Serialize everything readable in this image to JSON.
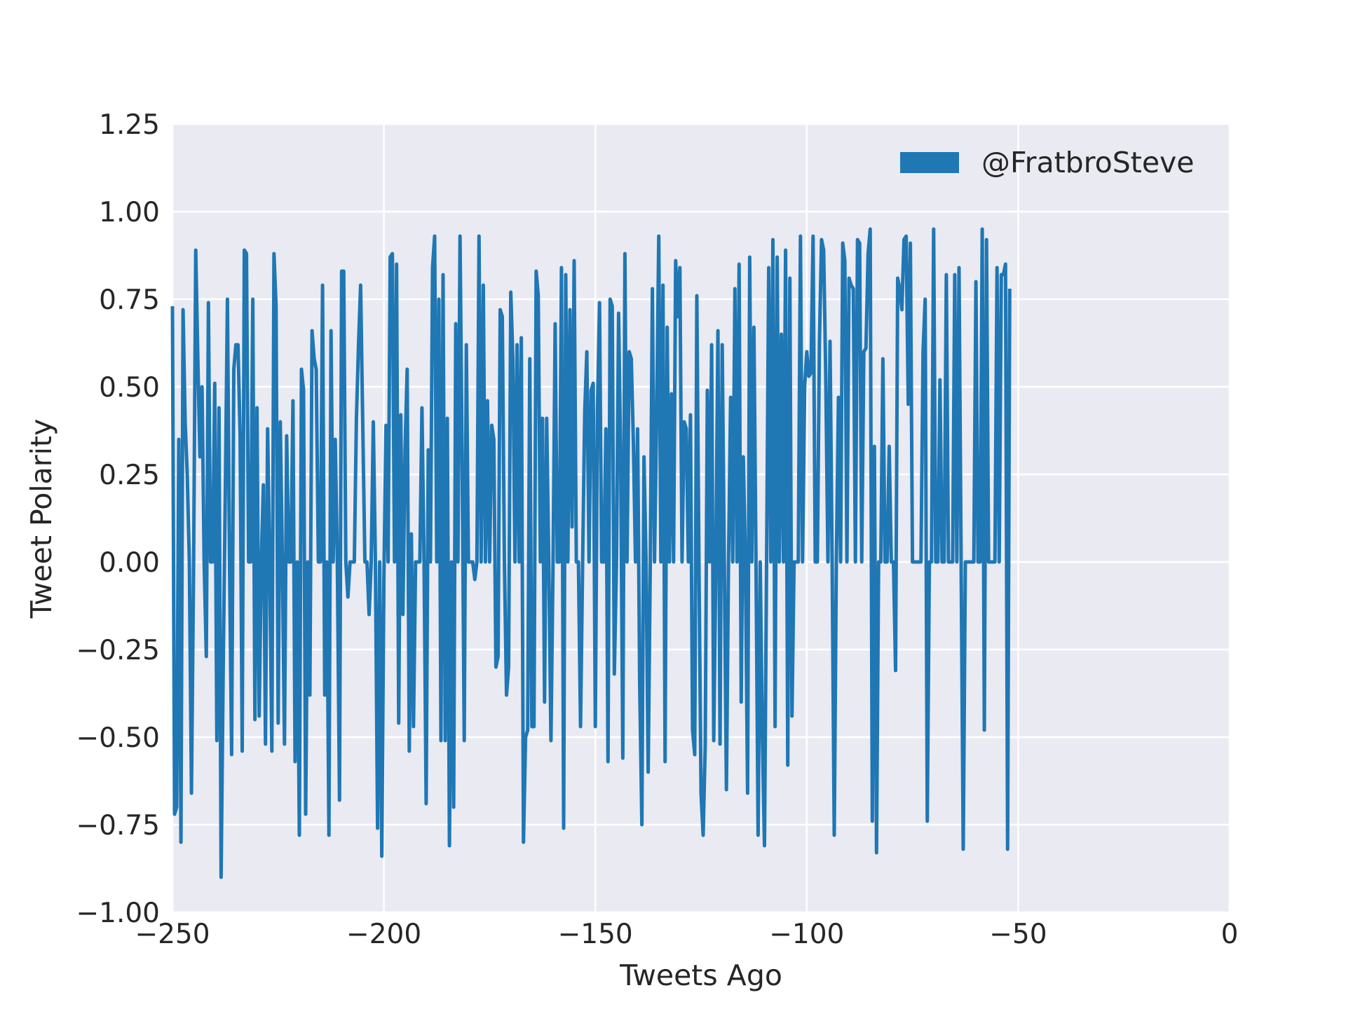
{
  "chart_data": {
    "type": "line",
    "title": "",
    "xlabel": "Tweets Ago",
    "ylabel": "Tweet Polarity",
    "xlim": [
      -250,
      0
    ],
    "ylim": [
      -1.0,
      1.25
    ],
    "x_ticks": [
      -250,
      -200,
      -150,
      -100,
      -50,
      0
    ],
    "x_tick_labels": [
      "−250",
      "−200",
      "−150",
      "−100",
      "−50",
      "0"
    ],
    "y_ticks": [
      -1.0,
      -0.75,
      -0.5,
      -0.25,
      0.0,
      0.25,
      0.5,
      0.75,
      1.0,
      1.25
    ],
    "y_tick_labels": [
      "−1.00",
      "−0.75",
      "−0.50",
      "−0.25",
      "0.00",
      "0.25",
      "0.50",
      "0.75",
      "1.00",
      "1.25"
    ],
    "grid": true,
    "legend_position": "top-right",
    "background_color": "#eaeaf2",
    "grid_color": "#ffffff",
    "series": [
      {
        "name": "@FratbroSteve",
        "color": "#1f77b4",
        "x_start": -250,
        "x_step": 0.5,
        "values": [
          0.73,
          -0.72,
          -0.7,
          0.35,
          -0.8,
          0.72,
          0.4,
          0.25,
          0.0,
          -0.66,
          0.0,
          0.89,
          0.58,
          0.3,
          0.5,
          0.0,
          -0.27,
          0.74,
          0.0,
          0.0,
          0.51,
          -0.51,
          0.44,
          -0.9,
          -0.3,
          0.2,
          0.75,
          0.0,
          -0.55,
          0.55,
          0.62,
          0.62,
          0.36,
          -0.54,
          0.89,
          0.88,
          0.0,
          0.0,
          0.75,
          -0.45,
          0.44,
          -0.44,
          0.0,
          0.22,
          -0.52,
          0.38,
          0.0,
          -0.54,
          0.88,
          0.73,
          -0.46,
          0.4,
          0.0,
          -0.52,
          0.36,
          0.0,
          0.0,
          0.46,
          -0.57,
          0.0,
          -0.78,
          0.55,
          0.49,
          -0.72,
          0.0,
          -0.38,
          0.66,
          0.58,
          0.55,
          0.0,
          0.0,
          0.79,
          -0.38,
          0.0,
          -0.78,
          0.66,
          0.0,
          0.35,
          0.0,
          -0.68,
          0.83,
          0.83,
          0.0,
          -0.1,
          0.0,
          0.0,
          0.0,
          0.41,
          0.62,
          0.79,
          0.4,
          0.0,
          0.0,
          -0.15,
          0.0,
          0.4,
          0.0,
          -0.76,
          0.0,
          -0.84,
          -0.05,
          0.39,
          0.0,
          0.87,
          0.88,
          0.0,
          0.85,
          -0.46,
          0.42,
          -0.15,
          0.32,
          0.55,
          -0.54,
          0.08,
          -0.47,
          0.0,
          0.0,
          0.0,
          0.44,
          0.0,
          -0.69,
          0.32,
          0.0,
          0.84,
          0.93,
          0.0,
          0.75,
          -0.51,
          0.82,
          -0.51,
          0.41,
          -0.81,
          0.0,
          -0.7,
          0.68,
          0.0,
          0.93,
          0.3,
          -0.51,
          0.62,
          0.0,
          0.0,
          0.0,
          -0.05,
          0.0,
          0.93,
          0.0,
          0.79,
          0.0,
          0.46,
          0.0,
          0.39,
          0.35,
          -0.3,
          -0.27,
          0.72,
          0.7,
          0.0,
          -0.38,
          -0.3,
          0.77,
          0.58,
          0.0,
          0.62,
          0.0,
          0.64,
          -0.8,
          -0.5,
          -0.48,
          0.58,
          -0.47,
          -0.47,
          0.83,
          0.76,
          0.0,
          0.41,
          -0.4,
          0.41,
          0.0,
          -0.51,
          0.0,
          0.68,
          0.0,
          0.0,
          0.84,
          -0.76,
          0.82,
          0.0,
          0.72,
          0.1,
          0.86,
          0.0,
          0.0,
          -0.47,
          0.0,
          0.43,
          0.6,
          0.0,
          0.49,
          0.51,
          -0.47,
          0.43,
          0.74,
          0.0,
          0.0,
          0.38,
          -0.57,
          0.75,
          0.73,
          -0.32,
          0.0,
          0.71,
          0.29,
          -0.56,
          0.88,
          0.0,
          0.6,
          0.58,
          0.34,
          0.0,
          0.38,
          -0.35,
          -0.75,
          0.3,
          0.0,
          -0.6,
          0.0,
          0.78,
          0.0,
          0.42,
          0.93,
          0.0,
          0.79,
          -0.57,
          0.67,
          0.0,
          0.48,
          0.0,
          0.86,
          0.7,
          0.84,
          0.0,
          0.4,
          0.38,
          0.0,
          0.42,
          -0.48,
          -0.55,
          0.76,
          0.0,
          -0.66,
          -0.78,
          -0.52,
          0.49,
          0.0,
          0.62,
          -0.51,
          0.0,
          0.66,
          -0.52,
          0.62,
          0.0,
          -0.65,
          0.0,
          0.47,
          0.0,
          0.78,
          0.0,
          0.85,
          -0.4,
          0.3,
          0.0,
          -0.66,
          0.87,
          0.0,
          0.67,
          0.0,
          -0.78,
          0.0,
          -0.5,
          -0.81,
          0.0,
          0.84,
          0.0,
          0.92,
          -0.47,
          0.87,
          0.0,
          0.65,
          0.0,
          0.89,
          -0.58,
          0.81,
          -0.44,
          0.0,
          0.0,
          0.0,
          0.93,
          0.0,
          0.5,
          0.6,
          0.53,
          0.54,
          0.93,
          0.0,
          0.0,
          0.63,
          0.92,
          0.89,
          0.53,
          0.0,
          0.63,
          0.0,
          -0.78,
          0.0,
          0.47,
          0.0,
          0.91,
          0.86,
          0.0,
          0.81,
          0.79,
          0.78,
          0.0,
          0.92,
          0.91,
          0.0,
          0.6,
          0.61,
          0.88,
          0.95,
          -0.74,
          0.33,
          -0.83,
          0.0,
          0.0,
          0.58,
          0.0,
          0.0,
          0.33,
          0.0,
          0.0,
          -0.31,
          0.81,
          0.78,
          0.72,
          0.92,
          0.93,
          0.45,
          0.91,
          0.0,
          0.0,
          0.0,
          0.0,
          0.0,
          0.6,
          0.75,
          -0.74,
          0.0,
          0.0,
          0.95,
          0.0,
          0.0,
          0.52,
          0.0,
          0.0,
          0.82,
          0.0,
          0.0,
          0.0,
          0.82,
          0.0,
          0.84,
          0.0,
          -0.82,
          0.0,
          0.0,
          0.0,
          0.0,
          0.0,
          0.8,
          0.0,
          0.0,
          0.95,
          -0.48,
          0.92,
          0.0,
          0.0,
          0.0,
          0.0,
          0.84,
          0.0,
          0.82,
          0.82,
          0.85,
          -0.82,
          0.78
        ]
      }
    ]
  }
}
